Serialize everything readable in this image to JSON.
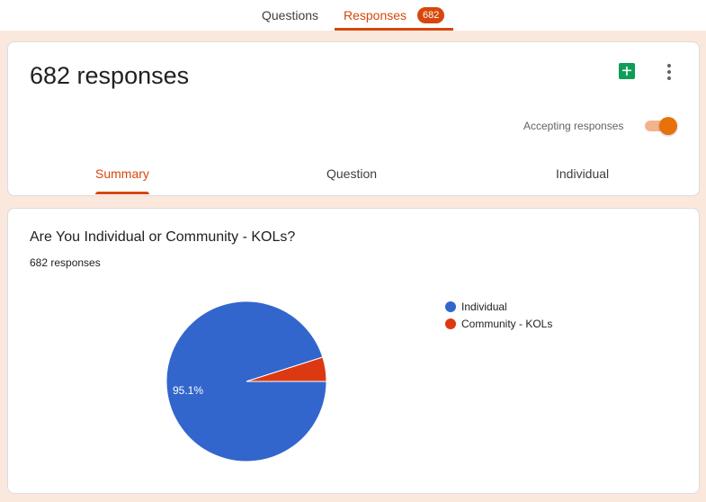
{
  "top_tabs": {
    "questions": "Questions",
    "responses": "Responses",
    "responses_badge": "682"
  },
  "header": {
    "title": "682 responses",
    "accepting_label": "Accepting responses",
    "accepting_on": true
  },
  "sub_tabs": {
    "summary": "Summary",
    "question": "Question",
    "individual": "Individual"
  },
  "question": {
    "title": "Are You Individual or Community - KOLs?",
    "response_count": "682 responses"
  },
  "colors": {
    "accent": "#d7470b",
    "individual": "#3366cc",
    "community": "#dc3912",
    "sheets": "#0f9d58"
  },
  "icons": {
    "sheets": "google-sheets-icon",
    "more": "more-vert-icon"
  },
  "chart_data": {
    "type": "pie",
    "categories": [
      "Individual",
      "Community - KOLs"
    ],
    "values": [
      95.1,
      4.9
    ],
    "slice_labels": [
      "95.1%",
      ""
    ],
    "legend_position": "right"
  }
}
